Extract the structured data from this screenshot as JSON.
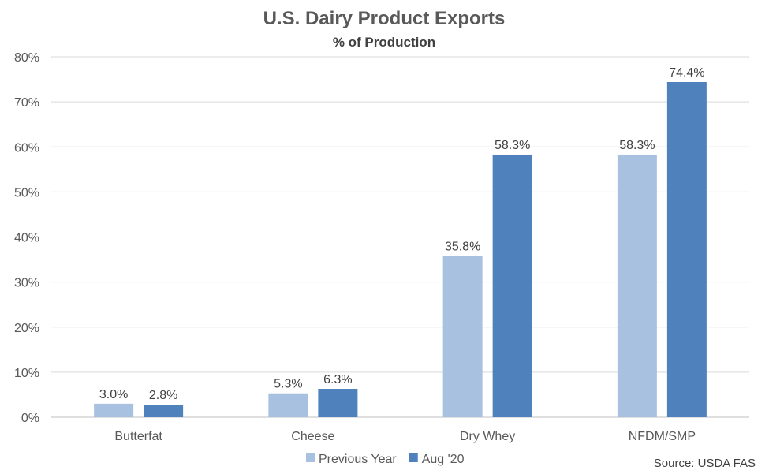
{
  "chart_data": {
    "type": "bar",
    "title": "U.S. Dairy Product Exports",
    "subtitle": "% of Production",
    "categories": [
      "Butterfat",
      "Cheese",
      "Dry Whey",
      "NFDM/SMP"
    ],
    "series": [
      {
        "name": "Previous Year",
        "values": [
          3.0,
          5.3,
          35.8,
          58.3
        ],
        "labels": [
          "3.0%",
          "5.3%",
          "35.8%",
          "58.3%"
        ],
        "color": "#a9c1e0"
      },
      {
        "name": "Aug '20",
        "values": [
          2.8,
          6.3,
          58.3,
          74.4
        ],
        "labels": [
          "2.8%",
          "6.3%",
          "58.3%",
          "74.4%"
        ],
        "color": "#4f81bd"
      }
    ],
    "ylim": [
      0,
      80
    ],
    "yticks": [
      0,
      10,
      20,
      30,
      40,
      50,
      60,
      70,
      80
    ],
    "ytick_labels": [
      "0%",
      "10%",
      "20%",
      "30%",
      "40%",
      "50%",
      "60%",
      "70%",
      "80%"
    ],
    "grid": true,
    "legend_position": "bottom",
    "source": "Source: USDA FAS"
  }
}
